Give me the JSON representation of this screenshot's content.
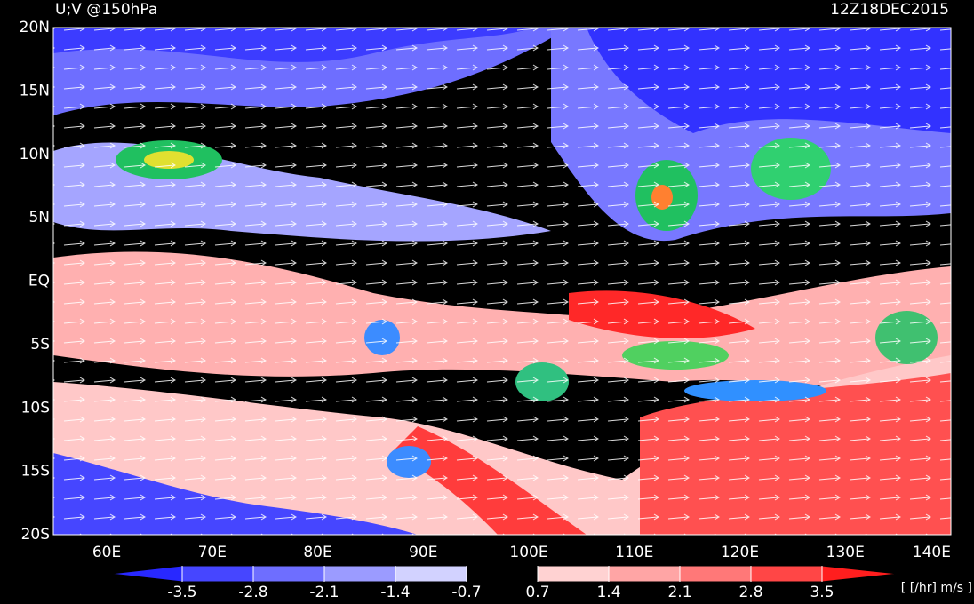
{
  "header": {
    "title": "U;V @150hPa",
    "time": "12Z18DEC2015"
  },
  "map": {
    "lat_labels": [
      "20N",
      "15N",
      "10N",
      "5N",
      "EQ",
      "5S",
      "10S",
      "15S",
      "20S"
    ],
    "lon_labels": [
      "60E",
      "70E",
      "80E",
      "90E",
      "100E",
      "110E",
      "120E",
      "130E",
      "140E"
    ]
  },
  "colorbar": {
    "ticks": [
      -3.5,
      -2.8,
      -2.1,
      -1.4,
      -0.7,
      0.7,
      1.4,
      2.1,
      2.8,
      3.5
    ],
    "colors": [
      "#2828ff",
      "#4646ff",
      "#6e6eff",
      "#9b9bff",
      "#d2d2ff",
      "#000000",
      "#ffd2d2",
      "#ffa5a5",
      "#ff7878",
      "#ff4646",
      "#ff1e1e"
    ],
    "unit": "[ [/hr] m/s ]"
  }
}
